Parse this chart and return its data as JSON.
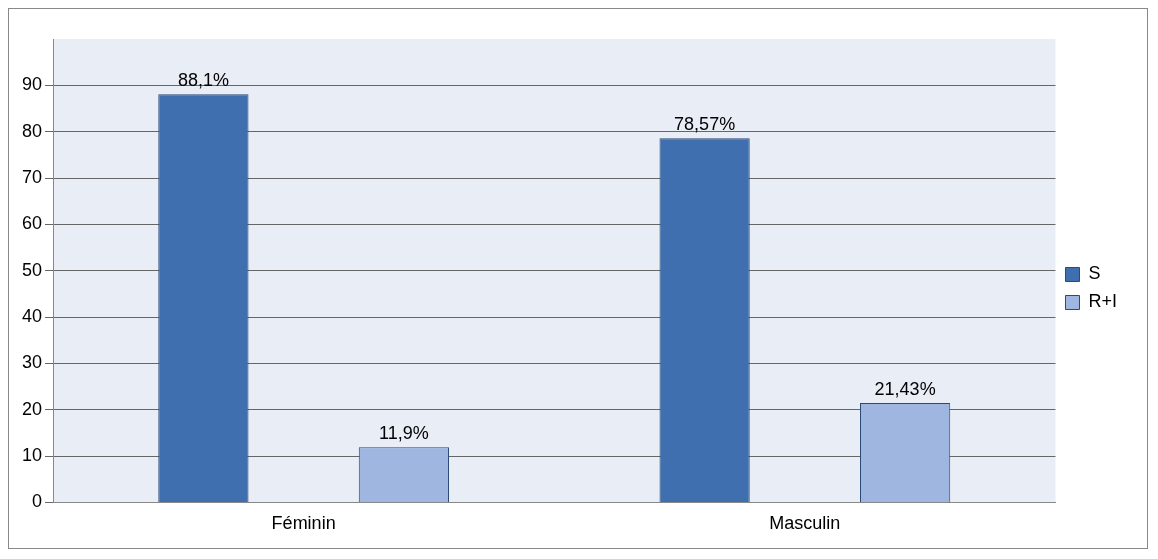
{
  "chart_data": {
    "type": "bar",
    "categories": [
      "Féminin",
      "Masculin"
    ],
    "series": [
      {
        "name": "S",
        "color": "#3f6fae",
        "values": [
          88.1,
          78.57
        ],
        "value_labels": [
          "88,1%",
          "78,57%"
        ]
      },
      {
        "name": "R+I",
        "color": "#9fb6e0",
        "values": [
          11.9,
          21.43
        ],
        "value_labels": [
          "11,9%",
          "21,43%"
        ]
      }
    ],
    "ylim": [
      0,
      100
    ],
    "yticks": [
      0,
      10,
      20,
      30,
      40,
      50,
      60,
      70,
      80,
      90
    ],
    "grid": "y",
    "legend": "right"
  }
}
